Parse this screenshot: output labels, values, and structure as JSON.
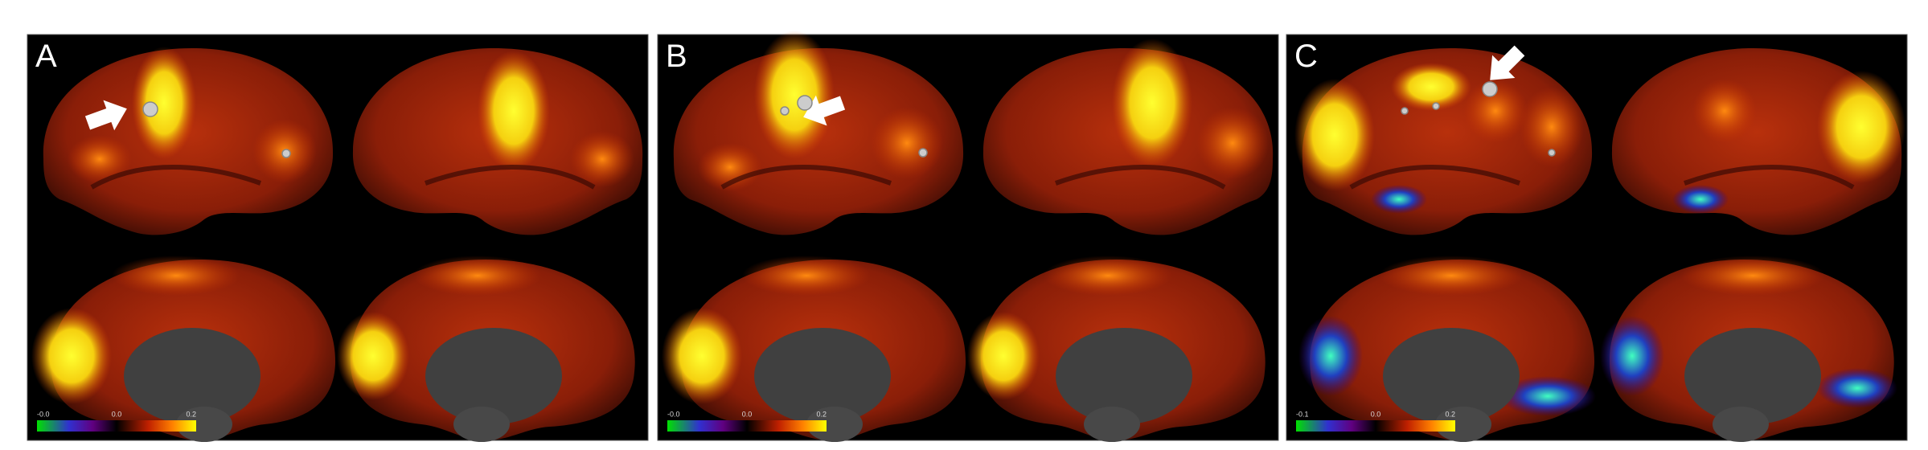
{
  "panels": [
    {
      "label": "A",
      "colorbar_ticks": [
        "-0.0",
        "0.0",
        "0.2"
      ]
    },
    {
      "label": "B",
      "colorbar_ticks": [
        "-0.0",
        "0.0",
        "0.2"
      ]
    },
    {
      "label": "C",
      "colorbar_ticks": [
        "-0.1",
        "0.0",
        "0.2"
      ]
    }
  ]
}
